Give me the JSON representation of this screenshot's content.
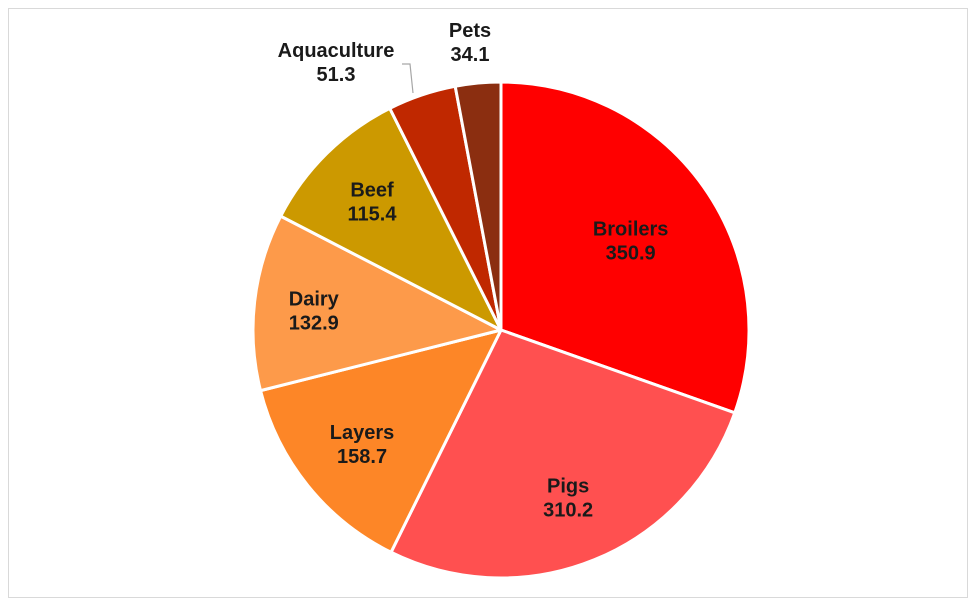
{
  "chart_data": {
    "type": "pie",
    "title": "",
    "start_angle_deg": 0,
    "direction": "clockwise",
    "slices": [
      {
        "label": "Broilers",
        "value": 350.9,
        "value_label": "350.9",
        "color": "#ff0000"
      },
      {
        "label": "Pigs",
        "value": 310.2,
        "value_label": "310.2",
        "color": "#ff5050"
      },
      {
        "label": "Layers",
        "value": 158.7,
        "value_label": "158.7",
        "color": "#fd8627"
      },
      {
        "label": "Dairy",
        "value": 132.9,
        "value_label": "132.9",
        "color": "#fd9a4a"
      },
      {
        "label": "Beef",
        "value": 115.4,
        "value_label": "115.4",
        "color": "#cc9900"
      },
      {
        "label": "Aquaculture",
        "value": 51.3,
        "value_label": "51.3",
        "color": "#c02800"
      },
      {
        "label": "Pets",
        "value": 34.1,
        "value_label": "34.1",
        "color": "#8b2e10"
      }
    ],
    "slice_border_color": "#ffffff",
    "legend": "none"
  }
}
